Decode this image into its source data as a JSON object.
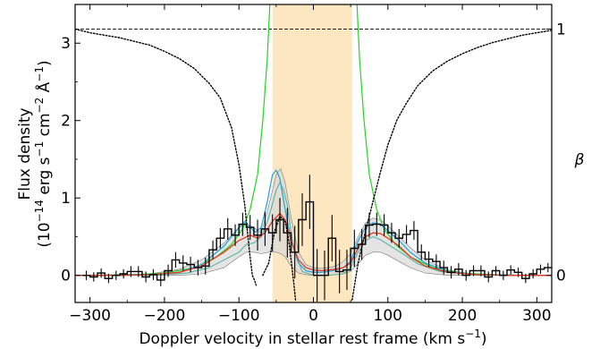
{
  "chart_data": {
    "type": "line",
    "xlabel": "Doppler velocity in stellar rest frame (km s",
    "xlabel_sup": "−1",
    "xlabel_close": ")",
    "ylabel_line1": "Flux density",
    "ylabel_line2_a": "(10",
    "ylabel_line2_sup1": "−14",
    "ylabel_line2_b": " erg s",
    "ylabel_line2_sup2": "−1",
    "ylabel_line2_c": " cm",
    "ylabel_line2_sup3": "−2",
    "ylabel_line2_d": " Å",
    "ylabel_line2_sup4": "−1",
    "ylabel_line2_e": ")",
    "y2label": "β",
    "xlim": [
      -320,
      320
    ],
    "ylim": [
      -0.35,
      3.5
    ],
    "y2lim": [
      -0.11,
      1.1
    ],
    "x_ticks": [
      -300,
      -200,
      -100,
      0,
      100,
      200,
      300
    ],
    "x_tick_labels": [
      "−300",
      "−200",
      "−100",
      "0",
      "100",
      "200",
      "300"
    ],
    "y_ticks": [
      0,
      1,
      2,
      3
    ],
    "y_tick_labels": [
      "0",
      "1",
      "2",
      "3"
    ],
    "y2_ticks": [
      0,
      1
    ],
    "y2_tick_labels": [
      "0",
      "1"
    ],
    "shaded_band": {
      "x0": -55,
      "x1": 52,
      "color": "#fde7c0"
    },
    "hline_beta": 1,
    "colors": {
      "data": "#000000",
      "red": "#e8391f",
      "blue": "#2fa6dc",
      "green": "#22d622",
      "teal": "#63b7a8",
      "gray_band": "#d9d9d9",
      "band_edge": "#7c7c7c"
    },
    "observed": {
      "x": [
        -305,
        -295,
        -285,
        -275,
        -265,
        -255,
        -245,
        -235,
        -225,
        -215,
        -205,
        -195,
        -185,
        -175,
        -165,
        -155,
        -145,
        -135,
        -125,
        -115,
        -105,
        -95,
        -85,
        -75,
        -65,
        -55,
        -45,
        -35,
        -25,
        -15,
        -5,
        5,
        15,
        25,
        35,
        45,
        55,
        65,
        75,
        85,
        95,
        105,
        115,
        125,
        135,
        145,
        155,
        165,
        175,
        185,
        195,
        205,
        215,
        225,
        235,
        245,
        255,
        265,
        275,
        285,
        295,
        305,
        315
      ],
      "y": [
        0.0,
        -0.02,
        0.03,
        -0.04,
        0.0,
        0.02,
        0.05,
        0.05,
        -0.02,
        0.01,
        -0.06,
        0.06,
        0.2,
        0.16,
        0.14,
        0.1,
        0.12,
        0.33,
        0.48,
        0.6,
        0.52,
        0.66,
        0.62,
        0.52,
        0.6,
        0.55,
        0.72,
        0.55,
        0.3,
        0.72,
        0.95,
        0.0,
        0.0,
        0.48,
        0.05,
        0.07,
        0.35,
        0.4,
        0.65,
        0.66,
        0.65,
        0.55,
        0.48,
        0.53,
        0.58,
        0.3,
        0.21,
        0.18,
        0.1,
        0.04,
        0.08,
        0.0,
        0.06,
        0.06,
        -0.02,
        0.06,
        0.0,
        0.07,
        0.04,
        -0.04,
        0.02,
        0.08,
        0.1
      ],
      "err": [
        0.06,
        0.06,
        0.06,
        0.06,
        0.06,
        0.06,
        0.07,
        0.07,
        0.07,
        0.07,
        0.08,
        0.08,
        0.1,
        0.1,
        0.1,
        0.1,
        0.11,
        0.12,
        0.13,
        0.14,
        0.14,
        0.15,
        0.16,
        0.2,
        0.22,
        0.24,
        0.28,
        0.32,
        0.34,
        0.34,
        0.35,
        0.34,
        0.32,
        0.3,
        0.28,
        0.26,
        0.24,
        0.2,
        0.16,
        0.15,
        0.14,
        0.13,
        0.12,
        0.12,
        0.12,
        0.1,
        0.1,
        0.09,
        0.09,
        0.08,
        0.08,
        0.07,
        0.07,
        0.07,
        0.07,
        0.06,
        0.06,
        0.06,
        0.06,
        0.06,
        0.06,
        0.06,
        0.06
      ]
    },
    "model_red": {
      "x": [
        -320,
        -260,
        -220,
        -180,
        -150,
        -120,
        -100,
        -85,
        -75,
        -65,
        -55,
        -45,
        -38,
        -30,
        -20,
        -10,
        0,
        10,
        20,
        30,
        40,
        50,
        60,
        70,
        80,
        90,
        100,
        115,
        130,
        150,
        180,
        220,
        260,
        320
      ],
      "y": [
        0.0,
        0.0,
        0.01,
        0.04,
        0.12,
        0.3,
        0.45,
        0.52,
        0.48,
        0.55,
        0.7,
        0.8,
        0.72,
        0.45,
        0.2,
        0.1,
        0.07,
        0.06,
        0.07,
        0.08,
        0.1,
        0.16,
        0.35,
        0.5,
        0.55,
        0.54,
        0.48,
        0.38,
        0.24,
        0.12,
        0.04,
        0.01,
        0.0,
        0.0
      ]
    },
    "model_blue": {
      "x": [
        -320,
        -260,
        -220,
        -180,
        -150,
        -120,
        -100,
        -92,
        -85,
        -78,
        -70,
        -62,
        -55,
        -50,
        -45,
        -38,
        -30,
        -20,
        -10,
        0,
        10,
        20,
        30,
        40,
        50,
        60,
        70,
        80,
        90,
        100,
        115,
        130,
        150,
        180,
        220,
        260,
        320
      ],
      "y": [
        0.0,
        0.0,
        0.01,
        0.04,
        0.14,
        0.38,
        0.62,
        0.7,
        0.62,
        0.56,
        0.62,
        0.95,
        1.3,
        1.36,
        1.25,
        0.85,
        0.45,
        0.16,
        0.06,
        0.04,
        0.04,
        0.05,
        0.07,
        0.1,
        0.18,
        0.45,
        0.62,
        0.68,
        0.66,
        0.58,
        0.45,
        0.3,
        0.16,
        0.05,
        0.01,
        0.0,
        0.0
      ]
    },
    "model_teal": {
      "x": [
        -320,
        -220,
        -170,
        -140,
        -120,
        -100,
        -90,
        -80,
        -70,
        -60,
        -50,
        -45,
        -40,
        -35,
        -30,
        -25,
        -15,
        0,
        20,
        40,
        50,
        60,
        70,
        80,
        90,
        100,
        120,
        140,
        170,
        220,
        320
      ],
      "y": [
        0.0,
        0.0,
        0.03,
        0.1,
        0.2,
        0.3,
        0.4,
        0.42,
        0.5,
        0.75,
        1.1,
        1.2,
        1.1,
        0.9,
        0.55,
        0.3,
        0.05,
        0.0,
        0.0,
        0.02,
        0.1,
        0.3,
        0.45,
        0.5,
        0.46,
        0.4,
        0.28,
        0.15,
        0.05,
        0.01,
        0.0
      ]
    },
    "model_green": {
      "x": [
        -320,
        -280,
        -240,
        -200,
        -160,
        -130,
        -110,
        -95,
        -85,
        -75,
        -68,
        -62,
        -58,
        -55,
        55,
        58,
        62,
        68,
        75,
        85,
        95,
        110,
        130,
        160,
        200,
        240,
        280,
        320
      ],
      "y": [
        0.0,
        0.0,
        0.01,
        0.03,
        0.1,
        0.24,
        0.4,
        0.6,
        0.85,
        1.3,
        2.0,
        2.8,
        3.6,
        3.8,
        3.8,
        3.6,
        2.8,
        2.0,
        1.3,
        0.85,
        0.6,
        0.4,
        0.24,
        0.1,
        0.03,
        0.01,
        0.0,
        0.0
      ]
    },
    "gray_band": {
      "x": [
        -320,
        -220,
        -180,
        -150,
        -120,
        -100,
        -90,
        -80,
        -70,
        -60,
        -50,
        -44,
        -38,
        -30,
        -20,
        -10,
        0,
        10,
        20,
        30,
        40,
        50,
        60,
        70,
        80,
        90,
        100,
        115,
        130,
        150,
        180,
        220,
        320
      ],
      "upper": [
        0.0,
        0.02,
        0.08,
        0.2,
        0.42,
        0.62,
        0.66,
        0.62,
        0.55,
        0.9,
        1.3,
        1.38,
        1.2,
        0.75,
        0.3,
        0.14,
        0.1,
        0.09,
        0.1,
        0.12,
        0.18,
        0.28,
        0.5,
        0.68,
        0.74,
        0.72,
        0.64,
        0.5,
        0.36,
        0.2,
        0.07,
        0.01,
        0.0
      ],
      "lower": [
        0.0,
        0.0,
        0.0,
        0.02,
        0.1,
        0.24,
        0.3,
        0.3,
        0.28,
        0.3,
        0.3,
        0.28,
        0.24,
        0.12,
        0.03,
        0.01,
        0.0,
        0.0,
        0.0,
        0.01,
        0.02,
        0.05,
        0.15,
        0.26,
        0.3,
        0.3,
        0.26,
        0.18,
        0.1,
        0.03,
        0.0,
        0.0,
        0.0
      ]
    },
    "beta_dotted_left": {
      "x": [
        -320,
        -300,
        -280,
        -260,
        -240,
        -220,
        -200,
        -180,
        -160,
        -140,
        -125,
        -110,
        -100,
        -92,
        -86,
        -82,
        -79,
        -77
      ],
      "y": [
        1.0,
        0.985,
        0.975,
        0.965,
        0.95,
        0.935,
        0.91,
        0.88,
        0.84,
        0.78,
        0.72,
        0.6,
        0.45,
        0.28,
        0.1,
        0.0,
        -0.02,
        -0.04
      ]
    },
    "beta_dotted_mid": {
      "x": [
        -68,
        -60,
        -52,
        -45,
        -38,
        -33,
        -29,
        -26,
        -24
      ],
      "y": [
        0.0,
        0.05,
        0.18,
        0.24,
        0.22,
        0.14,
        0.04,
        -0.04,
        -0.1
      ]
    },
    "beta_dotted_right": {
      "x": [
        52,
        60,
        70,
        80,
        90,
        100,
        112,
        125,
        140,
        160,
        180,
        200,
        220,
        240,
        260,
        280,
        300,
        320
      ],
      "y": [
        -0.1,
        0.05,
        0.18,
        0.3,
        0.42,
        0.53,
        0.63,
        0.7,
        0.77,
        0.83,
        0.87,
        0.9,
        0.925,
        0.945,
        0.96,
        0.975,
        0.985,
        0.995
      ]
    }
  }
}
